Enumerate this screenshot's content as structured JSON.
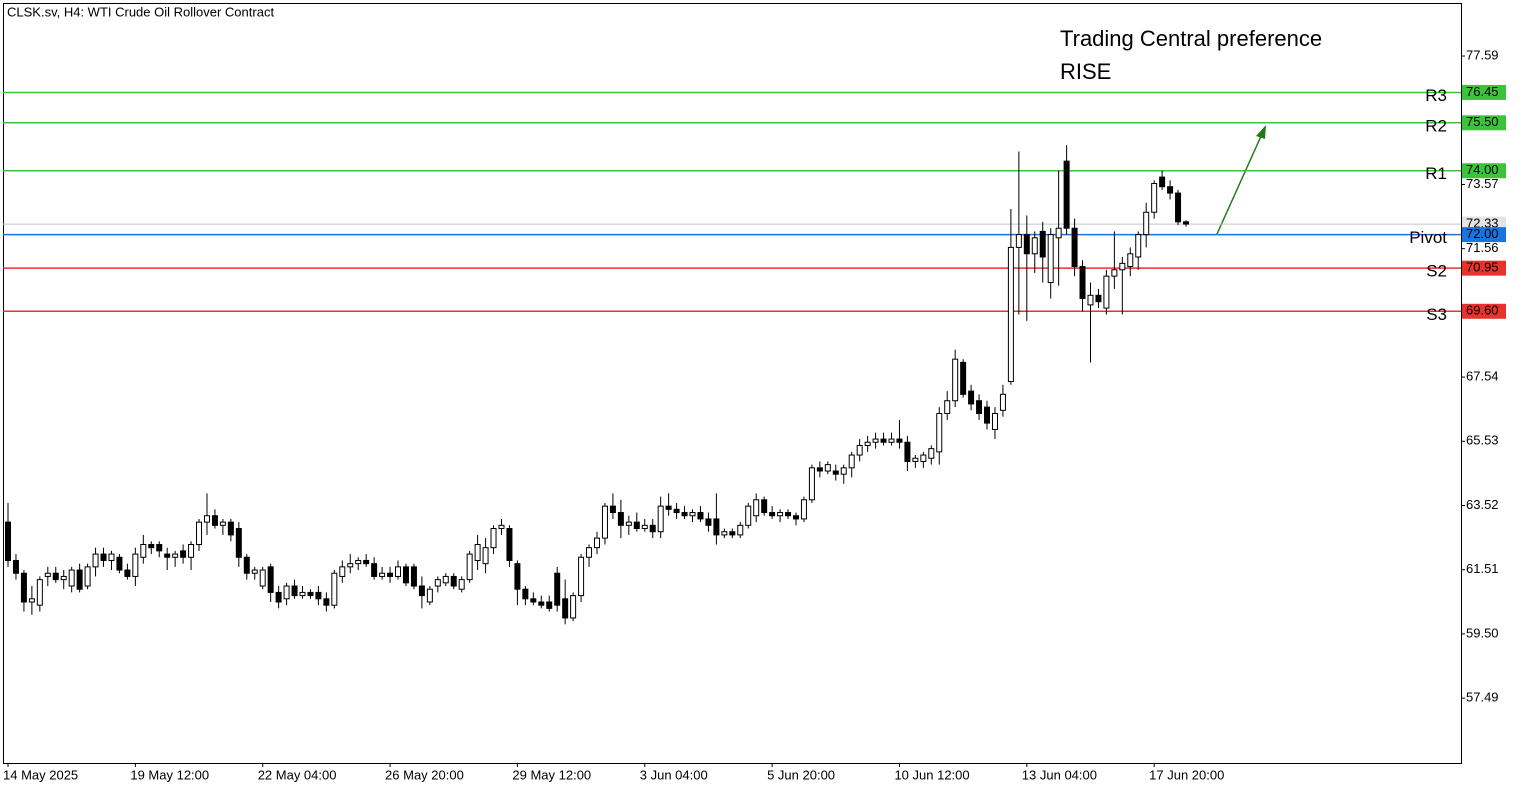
{
  "chart_data": {
    "type": "candlestick",
    "title": "CLSK.sv, H4:  WTI Crude Oil Rollover Contract",
    "annotations": [
      "Trading Central preference",
      "RISE"
    ],
    "annotation_color": "#45c85a",
    "bull_color": "#ffffff",
    "bear_color": "#000000",
    "grid": false,
    "ylim": [
      55.46,
      79.25
    ],
    "yticks": [
      57.49,
      {
        "value": 59.5,
        "label": "59.50"
      },
      61.51,
      63.52,
      65.53,
      67.54,
      71.56,
      73.57,
      77.59
    ],
    "last_price": 72.33,
    "last_price_color": "#c4c4c4",
    "levels": {
      "names": [
        "R3",
        "R2",
        "R1",
        "Pivot",
        "S2",
        "S3"
      ],
      "values": [
        76.45,
        75.5,
        74,
        72,
        70.95,
        69.6
      ],
      "value_labels": [
        "76.45",
        "75.50",
        "74.00",
        "72.00",
        "70.95",
        "69.60"
      ],
      "colors": [
        "#3cc23c",
        "#3cc23c",
        "#3cc23c",
        "#1a74e0",
        "#e8322c",
        "#e8322c"
      ]
    },
    "categories": [
      "14 May 2025",
      null,
      null,
      null,
      null,
      null,
      null,
      null,
      null,
      null,
      null,
      null,
      null,
      null,
      null,
      null,
      "19 May 12:00",
      null,
      null,
      null,
      null,
      null,
      null,
      null,
      null,
      null,
      null,
      null,
      null,
      null,
      null,
      null,
      "22 May 04:00",
      null,
      null,
      null,
      null,
      null,
      null,
      null,
      null,
      null,
      null,
      null,
      null,
      null,
      null,
      null,
      "26 May 20:00",
      null,
      null,
      null,
      null,
      null,
      null,
      null,
      null,
      null,
      null,
      null,
      null,
      null,
      null,
      null,
      "29 May 12:00",
      null,
      null,
      null,
      null,
      null,
      null,
      null,
      null,
      null,
      null,
      null,
      null,
      null,
      null,
      null,
      "3 Jun 04:00",
      null,
      null,
      null,
      null,
      null,
      null,
      null,
      null,
      null,
      null,
      null,
      null,
      null,
      null,
      null,
      "5 Jun 20:00",
      null,
      null,
      null,
      null,
      null,
      null,
      null,
      null,
      null,
      null,
      null,
      null,
      null,
      null,
      null,
      "10 Jun 12:00",
      null,
      null,
      null,
      null,
      null,
      null,
      null,
      null,
      null,
      null,
      null,
      null,
      null,
      null,
      null,
      "13 Jun 04:00",
      null,
      null,
      null,
      null,
      null,
      null,
      null,
      null,
      null,
      null,
      null,
      null,
      null,
      null,
      null,
      "17 Jun 20:00",
      null,
      null,
      null,
      null
    ],
    "ohlc": [
      [
        63.0,
        63.6,
        61.6,
        61.8
      ],
      [
        61.8,
        62.0,
        61.2,
        61.4
      ],
      [
        61.4,
        61.5,
        60.2,
        60.5
      ],
      [
        60.5,
        61.0,
        60.1,
        60.6
      ],
      [
        60.4,
        61.3,
        60.2,
        61.2
      ],
      [
        61.3,
        61.6,
        61.0,
        61.4
      ],
      [
        61.4,
        61.6,
        61.1,
        61.2
      ],
      [
        61.2,
        61.5,
        60.9,
        61.3
      ],
      [
        61.0,
        61.6,
        60.8,
        61.5
      ],
      [
        61.5,
        61.7,
        60.8,
        60.9
      ],
      [
        61.0,
        61.7,
        60.9,
        61.6
      ],
      [
        61.6,
        62.2,
        61.3,
        62.0
      ],
      [
        62.0,
        62.2,
        61.6,
        61.8
      ],
      [
        61.8,
        62.1,
        61.5,
        62.0
      ],
      [
        61.9,
        62.0,
        61.4,
        61.5
      ],
      [
        61.5,
        61.7,
        61.2,
        61.3
      ],
      [
        61.3,
        62.2,
        61.0,
        62.0
      ],
      [
        61.9,
        62.6,
        61.7,
        62.3
      ],
      [
        62.3,
        62.4,
        62.0,
        62.2
      ],
      [
        62.3,
        62.4,
        61.9,
        62.1
      ],
      [
        62.0,
        62.2,
        61.5,
        61.9
      ],
      [
        61.9,
        62.1,
        61.6,
        62.0
      ],
      [
        62.1,
        62.3,
        61.7,
        61.9
      ],
      [
        61.9,
        62.4,
        61.5,
        62.3
      ],
      [
        62.3,
        63.1,
        62.1,
        63.0
      ],
      [
        63.0,
        63.9,
        62.6,
        63.2
      ],
      [
        63.2,
        63.4,
        62.8,
        62.9
      ],
      [
        62.9,
        63.1,
        62.6,
        63.0
      ],
      [
        63.0,
        63.1,
        62.4,
        62.6
      ],
      [
        62.8,
        63.0,
        61.6,
        61.9
      ],
      [
        61.9,
        62.0,
        61.2,
        61.4
      ],
      [
        61.4,
        61.6,
        61.2,
        61.5
      ],
      [
        61.0,
        61.6,
        60.9,
        61.5
      ],
      [
        61.6,
        61.7,
        60.5,
        60.8
      ],
      [
        60.8,
        61.0,
        60.3,
        60.5
      ],
      [
        60.6,
        61.1,
        60.4,
        61.0
      ],
      [
        61.0,
        61.2,
        60.6,
        60.7
      ],
      [
        60.7,
        61.0,
        60.6,
        60.8
      ],
      [
        60.8,
        60.9,
        60.6,
        60.7
      ],
      [
        60.8,
        61.0,
        60.4,
        60.6
      ],
      [
        60.6,
        60.8,
        60.2,
        60.4
      ],
      [
        60.4,
        61.5,
        60.3,
        61.4
      ],
      [
        61.3,
        61.8,
        61.1,
        61.6
      ],
      [
        61.6,
        62.0,
        61.4,
        61.7
      ],
      [
        61.7,
        61.9,
        61.5,
        61.8
      ],
      [
        61.8,
        62.0,
        61.6,
        61.7
      ],
      [
        61.7,
        61.9,
        61.2,
        61.3
      ],
      [
        61.3,
        61.6,
        61.2,
        61.4
      ],
      [
        61.4,
        61.6,
        61.1,
        61.3
      ],
      [
        61.3,
        61.8,
        61.2,
        61.6
      ],
      [
        61.6,
        61.7,
        61.0,
        61.1
      ],
      [
        61.6,
        61.7,
        60.9,
        61.0
      ],
      [
        61.0,
        61.3,
        60.3,
        60.7
      ],
      [
        60.5,
        61.0,
        60.4,
        60.9
      ],
      [
        61.0,
        61.3,
        60.8,
        61.2
      ],
      [
        61.1,
        61.4,
        61.0,
        61.3
      ],
      [
        61.3,
        61.4,
        60.9,
        61.0
      ],
      [
        60.9,
        61.3,
        60.8,
        61.2
      ],
      [
        61.2,
        62.1,
        61.1,
        62.0
      ],
      [
        61.8,
        62.6,
        61.5,
        62.3
      ],
      [
        61.7,
        62.5,
        61.4,
        62.2
      ],
      [
        62.2,
        62.9,
        62.0,
        62.8
      ],
      [
        62.8,
        63.1,
        62.6,
        62.9
      ],
      [
        62.8,
        62.9,
        61.6,
        61.8
      ],
      [
        61.7,
        61.8,
        60.4,
        60.9
      ],
      [
        60.9,
        61.0,
        60.4,
        60.6
      ],
      [
        60.6,
        60.8,
        60.4,
        60.5
      ],
      [
        60.5,
        60.7,
        60.3,
        60.4
      ],
      [
        60.5,
        60.7,
        60.2,
        60.3
      ],
      [
        61.4,
        61.6,
        60.2,
        60.4
      ],
      [
        60.6,
        61.2,
        59.8,
        60.0
      ],
      [
        60.0,
        60.8,
        59.9,
        60.7
      ],
      [
        60.7,
        62.0,
        60.5,
        61.9
      ],
      [
        61.9,
        62.3,
        61.6,
        62.2
      ],
      [
        62.2,
        62.7,
        62.0,
        62.5
      ],
      [
        62.5,
        63.6,
        62.3,
        63.5
      ],
      [
        63.5,
        63.9,
        63.1,
        63.3
      ],
      [
        63.3,
        63.7,
        62.5,
        62.9
      ],
      [
        62.9,
        63.2,
        62.6,
        63.0
      ],
      [
        63.0,
        63.3,
        62.7,
        62.8
      ],
      [
        62.8,
        63.1,
        62.7,
        62.9
      ],
      [
        62.9,
        63.1,
        62.5,
        62.7
      ],
      [
        62.7,
        63.8,
        62.5,
        63.5
      ],
      [
        63.5,
        63.9,
        63.2,
        63.4
      ],
      [
        63.4,
        63.6,
        63.1,
        63.3
      ],
      [
        63.3,
        63.5,
        63.1,
        63.2
      ],
      [
        63.2,
        63.4,
        63.0,
        63.3
      ],
      [
        63.3,
        63.5,
        63.0,
        63.1
      ],
      [
        63.1,
        63.3,
        62.7,
        62.9
      ],
      [
        63.1,
        63.9,
        62.3,
        62.6
      ],
      [
        62.6,
        62.8,
        62.5,
        62.7
      ],
      [
        62.7,
        62.8,
        62.5,
        62.6
      ],
      [
        62.6,
        63.0,
        62.5,
        62.9
      ],
      [
        62.9,
        63.6,
        62.8,
        63.5
      ],
      [
        63.2,
        63.9,
        63.0,
        63.7
      ],
      [
        63.7,
        63.8,
        63.2,
        63.3
      ],
      [
        63.3,
        63.5,
        63.1,
        63.2
      ],
      [
        63.2,
        63.4,
        63.0,
        63.3
      ],
      [
        63.3,
        63.4,
        63.1,
        63.2
      ],
      [
        63.2,
        63.3,
        62.9,
        63.1
      ],
      [
        63.1,
        63.8,
        63.0,
        63.7
      ],
      [
        63.7,
        64.8,
        63.6,
        64.7
      ],
      [
        64.7,
        64.9,
        64.4,
        64.6
      ],
      [
        64.6,
        64.9,
        64.5,
        64.8
      ],
      [
        64.6,
        64.8,
        64.3,
        64.5
      ],
      [
        64.5,
        64.8,
        64.2,
        64.7
      ],
      [
        64.7,
        65.2,
        64.4,
        65.1
      ],
      [
        65.1,
        65.6,
        64.9,
        65.4
      ],
      [
        65.4,
        65.7,
        65.2,
        65.5
      ],
      [
        65.5,
        65.8,
        65.3,
        65.6
      ],
      [
        65.6,
        65.8,
        65.4,
        65.5
      ],
      [
        65.5,
        65.8,
        65.4,
        65.6
      ],
      [
        65.6,
        66.2,
        65.3,
        65.5
      ],
      [
        65.5,
        65.7,
        64.6,
        64.9
      ],
      [
        64.9,
        65.1,
        64.7,
        65.0
      ],
      [
        64.9,
        65.2,
        64.7,
        65.1
      ],
      [
        65.0,
        65.4,
        64.8,
        65.3
      ],
      [
        65.2,
        66.6,
        64.8,
        66.4
      ],
      [
        66.4,
        67.1,
        66.2,
        66.8
      ],
      [
        66.8,
        68.4,
        66.6,
        68.1
      ],
      [
        68.0,
        68.1,
        66.9,
        67.0
      ],
      [
        67.1,
        67.3,
        66.5,
        66.7
      ],
      [
        66.8,
        67.0,
        66.2,
        66.4
      ],
      [
        66.6,
        66.8,
        65.9,
        66.1
      ],
      [
        65.9,
        66.6,
        65.6,
        66.4
      ],
      [
        66.5,
        67.3,
        66.3,
        67.0
      ],
      [
        67.4,
        72.8,
        67.3,
        71.6
      ],
      [
        71.6,
        74.6,
        69.5,
        72.0
      ],
      [
        72.0,
        72.6,
        69.3,
        71.4
      ],
      [
        71.4,
        72.1,
        70.8,
        71.9
      ],
      [
        72.1,
        72.4,
        70.5,
        71.3
      ],
      [
        70.5,
        72.2,
        70.0,
        72.0
      ],
      [
        71.9,
        74.0,
        70.4,
        72.2
      ],
      [
        74.3,
        74.8,
        72.0,
        72.2
      ],
      [
        72.2,
        72.5,
        70.7,
        71.0
      ],
      [
        71.0,
        71.2,
        69.6,
        70.0
      ],
      [
        69.8,
        70.5,
        68.0,
        70.1
      ],
      [
        70.1,
        70.3,
        69.7,
        69.9
      ],
      [
        69.7,
        70.9,
        69.5,
        70.7
      ],
      [
        70.7,
        72.1,
        70.3,
        70.9
      ],
      [
        70.9,
        71.3,
        69.5,
        71.1
      ],
      [
        71.0,
        71.6,
        70.7,
        71.4
      ],
      [
        71.3,
        72.1,
        70.9,
        72.0
      ],
      [
        72.0,
        73.0,
        71.6,
        72.7
      ],
      [
        72.7,
        73.7,
        72.5,
        73.6
      ],
      [
        73.8,
        74.0,
        73.4,
        73.5
      ],
      [
        73.5,
        73.7,
        73.1,
        73.3
      ],
      [
        73.3,
        73.4,
        72.3,
        72.4
      ],
      [
        72.4,
        72.45,
        72.25,
        72.33
      ]
    ]
  }
}
